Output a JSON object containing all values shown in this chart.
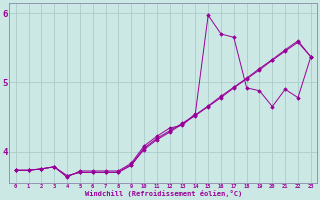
{
  "xlabel": "Windchill (Refroidissement éolien,°C)",
  "bg_color": "#cce8e4",
  "grid_color": "#aacccc",
  "line_color": "#990099",
  "spine_color": "#8888aa",
  "x_ticks": [
    0,
    1,
    2,
    3,
    4,
    5,
    6,
    7,
    8,
    9,
    10,
    11,
    12,
    13,
    14,
    15,
    16,
    17,
    18,
    19,
    20,
    21,
    22,
    23
  ],
  "y_ticks": [
    4,
    5,
    6
  ],
  "xlim": [
    -0.5,
    23.5
  ],
  "ylim": [
    3.55,
    6.15
  ],
  "series1_x": [
    0,
    1,
    2,
    3,
    4,
    5,
    6,
    7,
    8,
    9,
    10,
    11,
    12,
    13,
    14,
    15,
    16,
    17,
    18,
    19,
    20,
    21,
    22,
    23
  ],
  "series1_y": [
    3.73,
    3.73,
    3.75,
    3.78,
    3.63,
    3.72,
    3.72,
    3.72,
    3.72,
    3.83,
    4.08,
    4.22,
    4.34,
    4.38,
    4.55,
    5.97,
    5.7,
    5.65,
    4.92,
    4.88,
    4.65,
    4.9,
    4.78,
    5.37
  ],
  "series2_x": [
    0,
    1,
    2,
    3,
    4,
    5,
    6,
    7,
    8,
    9,
    10,
    11,
    12,
    13,
    14,
    15,
    16,
    17,
    18,
    19,
    20,
    21,
    22,
    23
  ],
  "series2_y": [
    3.73,
    3.73,
    3.75,
    3.78,
    3.65,
    3.7,
    3.7,
    3.7,
    3.7,
    3.8,
    4.03,
    4.17,
    4.28,
    4.4,
    4.52,
    4.65,
    4.78,
    4.92,
    5.05,
    5.18,
    5.32,
    5.45,
    5.58,
    5.37
  ],
  "series3_x": [
    0,
    1,
    2,
    3,
    4,
    5,
    6,
    7,
    8,
    9,
    10,
    11,
    12,
    13,
    14,
    15,
    16,
    17,
    18,
    19,
    20,
    21,
    22,
    23
  ],
  "series3_y": [
    3.73,
    3.73,
    3.75,
    3.78,
    3.65,
    3.7,
    3.7,
    3.7,
    3.7,
    3.81,
    4.05,
    4.19,
    4.3,
    4.41,
    4.53,
    4.66,
    4.8,
    4.93,
    5.06,
    5.2,
    5.33,
    5.47,
    5.6,
    5.37
  ]
}
